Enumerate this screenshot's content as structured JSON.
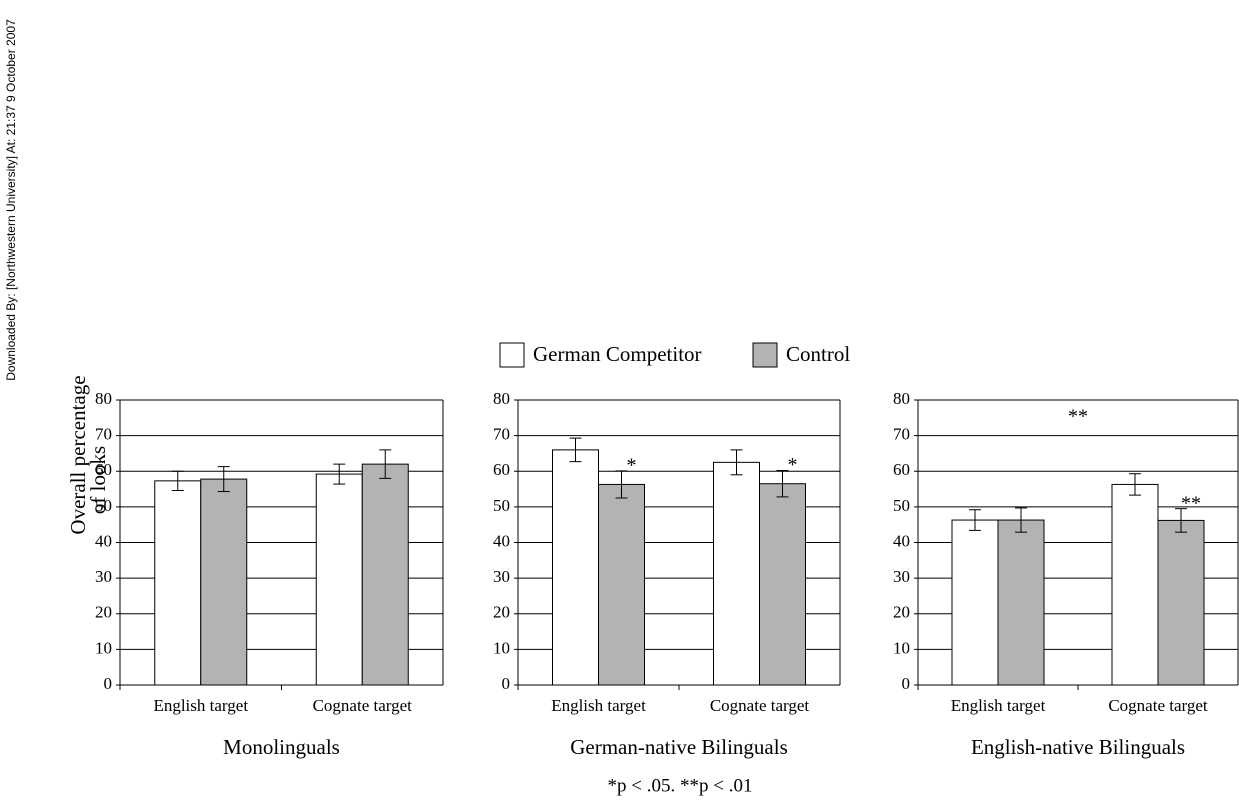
{
  "watermark": "Downloaded By: [Northwestern University] At: 21:37 9 October 2007",
  "legend": [
    {
      "name": "German Competitor",
      "color": "#ffffff"
    },
    {
      "name": "Control",
      "color": "#b3b3b3"
    }
  ],
  "ylabel": [
    "Overall percentage",
    "of looks"
  ],
  "footnote": "*p < .05.  **p < .01",
  "chart_data": [
    {
      "type": "bar",
      "xlabel": "Monolinguals",
      "categories": [
        "English target",
        "Cognate target"
      ],
      "series": [
        {
          "values": [
            57.3,
            59.2
          ],
          "errors": [
            2.7,
            2.8
          ]
        },
        {
          "values": [
            57.8,
            62
          ],
          "errors": [
            3.5,
            4
          ]
        }
      ],
      "ylim": [
        0,
        80
      ],
      "yticks": [
        0,
        10,
        20,
        30,
        40,
        50,
        60,
        70,
        80
      ],
      "grid": true
    },
    {
      "type": "bar",
      "xlabel": "German-native Bilinguals",
      "categories": [
        "English target",
        "Cognate target"
      ],
      "series": [
        {
          "values": [
            66,
            62.5
          ],
          "errors": [
            3.3,
            3.5
          ]
        },
        {
          "values": [
            56.3,
            56.5
          ],
          "errors": [
            3.8,
            3.7
          ],
          "annotations": [
            "*",
            "*"
          ]
        }
      ],
      "ylim": [
        0,
        80
      ],
      "yticks": [
        0,
        10,
        20,
        30,
        40,
        50,
        60,
        70,
        80
      ],
      "grid": true
    },
    {
      "type": "bar",
      "xlabel": "English-native Bilinguals",
      "annotation": "**",
      "categories": [
        "English target",
        "Cognate target"
      ],
      "series": [
        {
          "values": [
            46.3,
            56.3
          ],
          "errors": [
            2.9,
            3
          ]
        },
        {
          "values": [
            46.3,
            46.2
          ],
          "errors": [
            3.4,
            3.3
          ],
          "annotations": [
            null,
            "**"
          ]
        }
      ],
      "ylim": [
        0,
        80
      ],
      "yticks": [
        0,
        10,
        20,
        30,
        40,
        50,
        60,
        70,
        80
      ],
      "grid": true
    }
  ]
}
